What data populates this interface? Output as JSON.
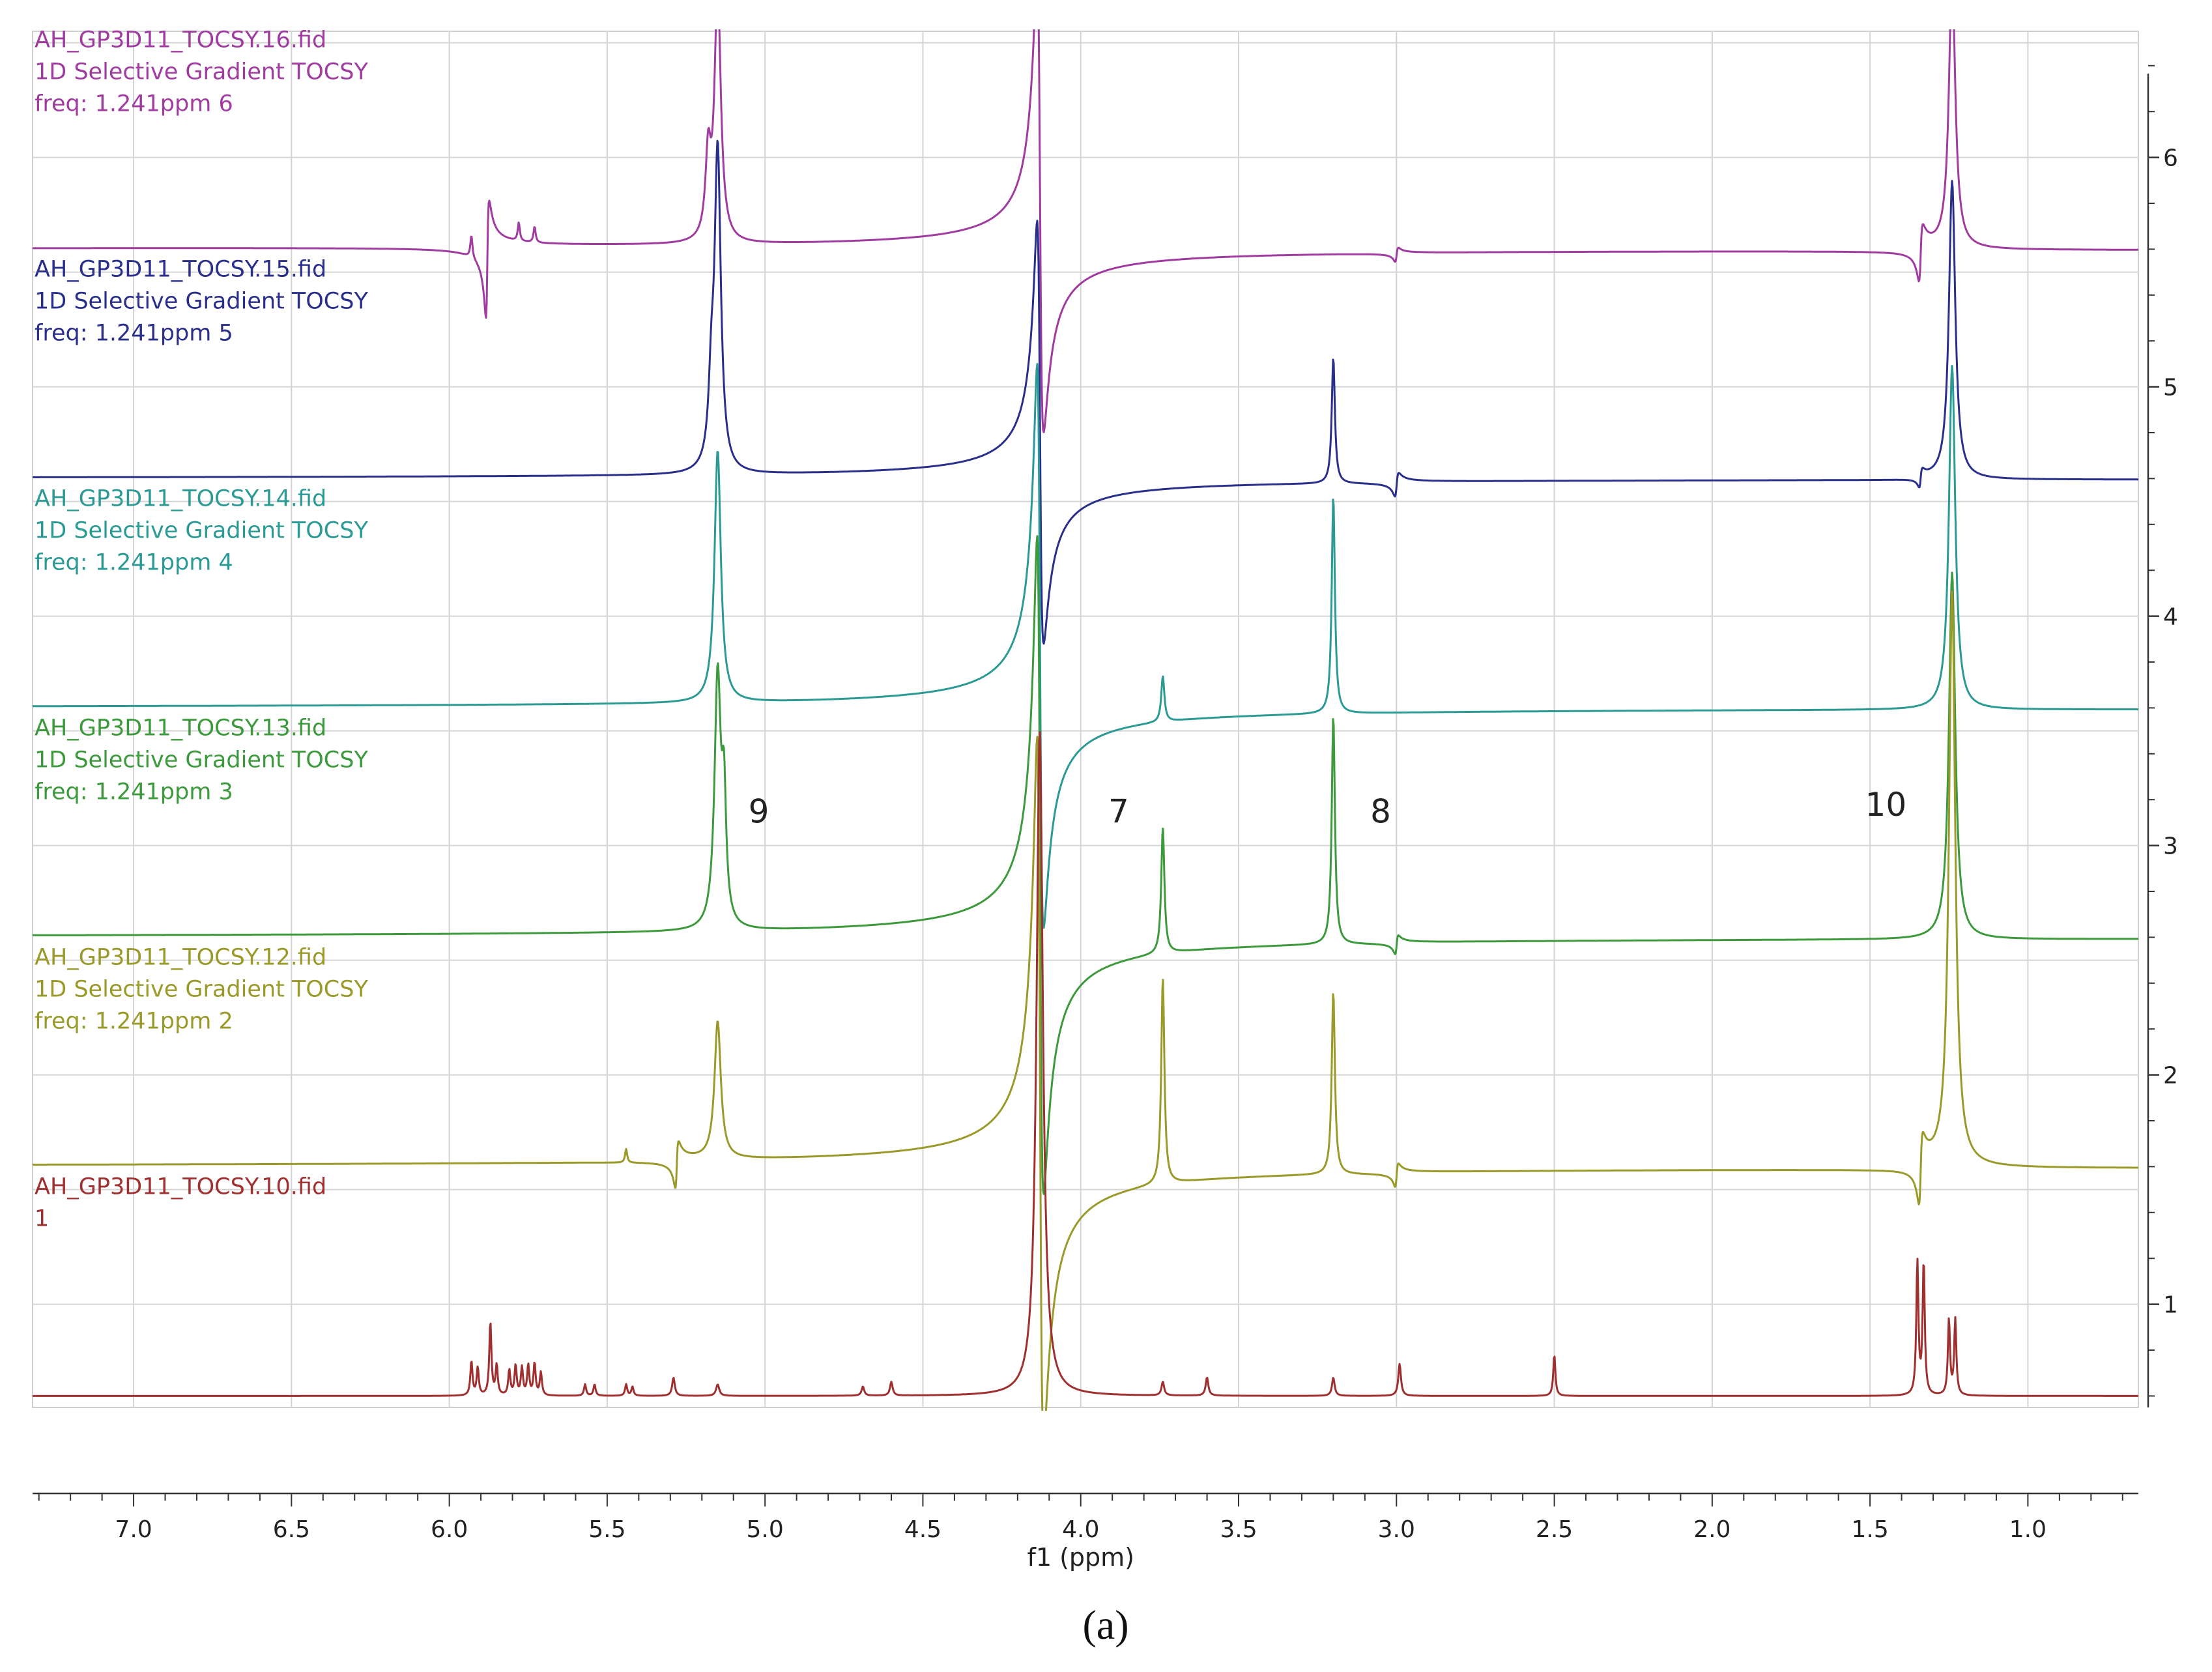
{
  "chart_data": {
    "type": "line",
    "title": "",
    "xlabel": "f1 (ppm)",
    "ylabel": "",
    "xlim": [
      7.32,
      0.65
    ],
    "ylim": [
      0.55,
      6.55
    ],
    "x_reversed": true,
    "x_ticks": [
      7.0,
      6.5,
      6.0,
      5.5,
      5.0,
      4.5,
      4.0,
      3.5,
      3.0,
      2.5,
      2.0,
      1.5,
      1.0
    ],
    "x_tick_labels": [
      "7.0",
      "6.5",
      "6.0",
      "5.5",
      "5.0",
      "4.5",
      "4.0",
      "3.5",
      "3.0",
      "2.5",
      "2.0",
      "1.5",
      "1.0"
    ],
    "y_ticks": [
      1,
      2,
      3,
      4,
      5,
      6
    ],
    "y_tick_labels": [
      "1",
      "2",
      "3",
      "4",
      "5",
      "6"
    ],
    "grid": true,
    "caption": "(a)",
    "peak_annotations": [
      {
        "text": "9",
        "x": 5.02,
        "y": 3.1
      },
      {
        "text": "7",
        "x": 3.88,
        "y": 3.1
      },
      {
        "text": "8",
        "x": 3.05,
        "y": 3.1
      },
      {
        "text": "10",
        "x": 1.45,
        "y": 3.13
      }
    ],
    "series": [
      {
        "name": "AH_GP3D11_TOCSY.16.fid",
        "labels": [
          "AH_GP3D11_TOCSY.16.fid",
          "1D Selective Gradient TOCSY",
          "freq: 1.241ppm 6"
        ],
        "color": "#a03ca0",
        "baseline": 5.6,
        "peaks": [
          {
            "ppm": 5.15,
            "height": 1.1,
            "width": 0.012
          },
          {
            "ppm": 5.18,
            "height": 0.35,
            "width": 0.01
          },
          {
            "ppm": 4.13,
            "height": 1.0,
            "width": 0.01,
            "dispersive": true
          },
          {
            "ppm": 1.24,
            "height": 1.2,
            "width": 0.012
          },
          {
            "ppm": 1.34,
            "height": -0.12,
            "width": 0.006,
            "dispersive": true
          },
          {
            "ppm": 5.88,
            "height": -0.25,
            "width": 0.005,
            "dispersive": true
          },
          {
            "ppm": 5.93,
            "height": 0.1,
            "width": 0.004
          },
          {
            "ppm": 5.78,
            "height": 0.08,
            "width": 0.004
          },
          {
            "ppm": 5.73,
            "height": 0.07,
            "width": 0.004
          },
          {
            "ppm": 3.0,
            "height": -0.03,
            "width": 0.005,
            "dispersive": true
          }
        ]
      },
      {
        "name": "AH_GP3D11_TOCSY.15.fid",
        "labels": [
          "AH_GP3D11_TOCSY.15.fid",
          "1D Selective Gradient TOCSY",
          "freq: 1.241ppm 5"
        ],
        "color": "#2a2f8c",
        "baseline": 4.6,
        "peaks": [
          {
            "ppm": 5.15,
            "height": 1.4,
            "width": 0.012
          },
          {
            "ppm": 5.17,
            "height": 0.3,
            "width": 0.01
          },
          {
            "ppm": 4.13,
            "height": 0.9,
            "width": 0.01,
            "dispersive": true
          },
          {
            "ppm": 3.2,
            "height": 0.55,
            "width": 0.006
          },
          {
            "ppm": 3.0,
            "height": -0.05,
            "width": 0.006,
            "dispersive": true
          },
          {
            "ppm": 1.24,
            "height": 1.3,
            "width": 0.012
          },
          {
            "ppm": 1.34,
            "height": -0.04,
            "width": 0.005,
            "dispersive": true
          }
        ]
      },
      {
        "name": "AH_GP3D11_TOCSY.14.fid",
        "labels": [
          "AH_GP3D11_TOCSY.14.fid",
          "1D Selective Gradient TOCSY",
          "freq: 1.241ppm 4"
        ],
        "color": "#2b9a94",
        "baseline": 3.6,
        "peaks": [
          {
            "ppm": 5.15,
            "height": 1.1,
            "width": 0.012
          },
          {
            "ppm": 4.13,
            "height": 1.2,
            "width": 0.01,
            "dispersive": true
          },
          {
            "ppm": 3.74,
            "height": 0.2,
            "width": 0.006
          },
          {
            "ppm": 3.2,
            "height": 0.95,
            "width": 0.006
          },
          {
            "ppm": 1.24,
            "height": 1.5,
            "width": 0.012
          }
        ]
      },
      {
        "name": "AH_GP3D11_TOCSY.13.fid",
        "labels": [
          "AH_GP3D11_TOCSY.13.fid",
          "1D Selective Gradient TOCSY",
          "freq: 1.241ppm 3"
        ],
        "color": "#3c9a3c",
        "baseline": 2.6,
        "peaks": [
          {
            "ppm": 5.15,
            "height": 1.1,
            "width": 0.012
          },
          {
            "ppm": 5.13,
            "height": 0.5,
            "width": 0.008
          },
          {
            "ppm": 4.13,
            "height": 1.4,
            "width": 0.01,
            "dispersive": true
          },
          {
            "ppm": 3.74,
            "height": 0.55,
            "width": 0.006
          },
          {
            "ppm": 3.2,
            "height": 1.0,
            "width": 0.006
          },
          {
            "ppm": 3.0,
            "height": -0.04,
            "width": 0.005,
            "dispersive": true
          },
          {
            "ppm": 1.24,
            "height": 1.6,
            "width": 0.012
          }
        ]
      },
      {
        "name": "AH_GP3D11_TOCSY.12.fid",
        "labels": [
          "AH_GP3D11_TOCSY.12.fid",
          "1D Selective Gradient TOCSY",
          "freq: 1.241ppm 2"
        ],
        "color": "#9a9a2a",
        "baseline": 1.6,
        "peaks": [
          {
            "ppm": 5.15,
            "height": 0.6,
            "width": 0.012
          },
          {
            "ppm": 4.13,
            "height": 1.5,
            "width": 0.01,
            "dispersive": true
          },
          {
            "ppm": 3.74,
            "height": 0.9,
            "width": 0.006
          },
          {
            "ppm": 3.2,
            "height": 0.8,
            "width": 0.006
          },
          {
            "ppm": 1.24,
            "height": 2.5,
            "width": 0.012
          },
          {
            "ppm": 1.34,
            "height": -0.15,
            "width": 0.006,
            "dispersive": true
          },
          {
            "ppm": 5.28,
            "height": -0.1,
            "width": 0.005,
            "dispersive": true
          },
          {
            "ppm": 5.44,
            "height": 0.06,
            "width": 0.004
          },
          {
            "ppm": 3.0,
            "height": -0.05,
            "width": 0.005,
            "dispersive": true
          }
        ]
      },
      {
        "name": "AH_GP3D11_TOCSY.10.fid",
        "labels": [
          "AH_GP3D11_TOCSY.10.fid",
          " 1"
        ],
        "color": "#a03030",
        "baseline": 0.6,
        "peaks": [
          {
            "ppm": 5.93,
            "height": 0.15,
            "width": 0.004
          },
          {
            "ppm": 5.91,
            "height": 0.12,
            "width": 0.004
          },
          {
            "ppm": 5.87,
            "height": 0.32,
            "width": 0.004
          },
          {
            "ppm": 5.85,
            "height": 0.13,
            "width": 0.004
          },
          {
            "ppm": 5.81,
            "height": 0.11,
            "width": 0.004
          },
          {
            "ppm": 5.79,
            "height": 0.13,
            "width": 0.004
          },
          {
            "ppm": 5.77,
            "height": 0.12,
            "width": 0.004
          },
          {
            "ppm": 5.75,
            "height": 0.13,
            "width": 0.004
          },
          {
            "ppm": 5.73,
            "height": 0.14,
            "width": 0.004
          },
          {
            "ppm": 5.71,
            "height": 0.1,
            "width": 0.004
          },
          {
            "ppm": 5.57,
            "height": 0.05,
            "width": 0.004
          },
          {
            "ppm": 5.54,
            "height": 0.05,
            "width": 0.004
          },
          {
            "ppm": 5.44,
            "height": 0.05,
            "width": 0.004
          },
          {
            "ppm": 5.42,
            "height": 0.04,
            "width": 0.004
          },
          {
            "ppm": 5.29,
            "height": 0.08,
            "width": 0.005
          },
          {
            "ppm": 5.15,
            "height": 0.05,
            "width": 0.006
          },
          {
            "ppm": 4.69,
            "height": 0.04,
            "width": 0.005
          },
          {
            "ppm": 4.6,
            "height": 0.06,
            "width": 0.005
          },
          {
            "ppm": 4.13,
            "height": 2.9,
            "width": 0.012
          },
          {
            "ppm": 3.74,
            "height": 0.06,
            "width": 0.005
          },
          {
            "ppm": 3.6,
            "height": 0.08,
            "width": 0.005
          },
          {
            "ppm": 3.2,
            "height": 0.08,
            "width": 0.005
          },
          {
            "ppm": 2.99,
            "height": 0.14,
            "width": 0.005
          },
          {
            "ppm": 2.5,
            "height": 0.18,
            "width": 0.004
          },
          {
            "ppm": 1.35,
            "height": 0.58,
            "width": 0.004
          },
          {
            "ppm": 1.33,
            "height": 0.58,
            "width": 0.004
          },
          {
            "ppm": 1.25,
            "height": 0.33,
            "width": 0.004
          },
          {
            "ppm": 1.23,
            "height": 0.33,
            "width": 0.004
          }
        ]
      }
    ]
  }
}
